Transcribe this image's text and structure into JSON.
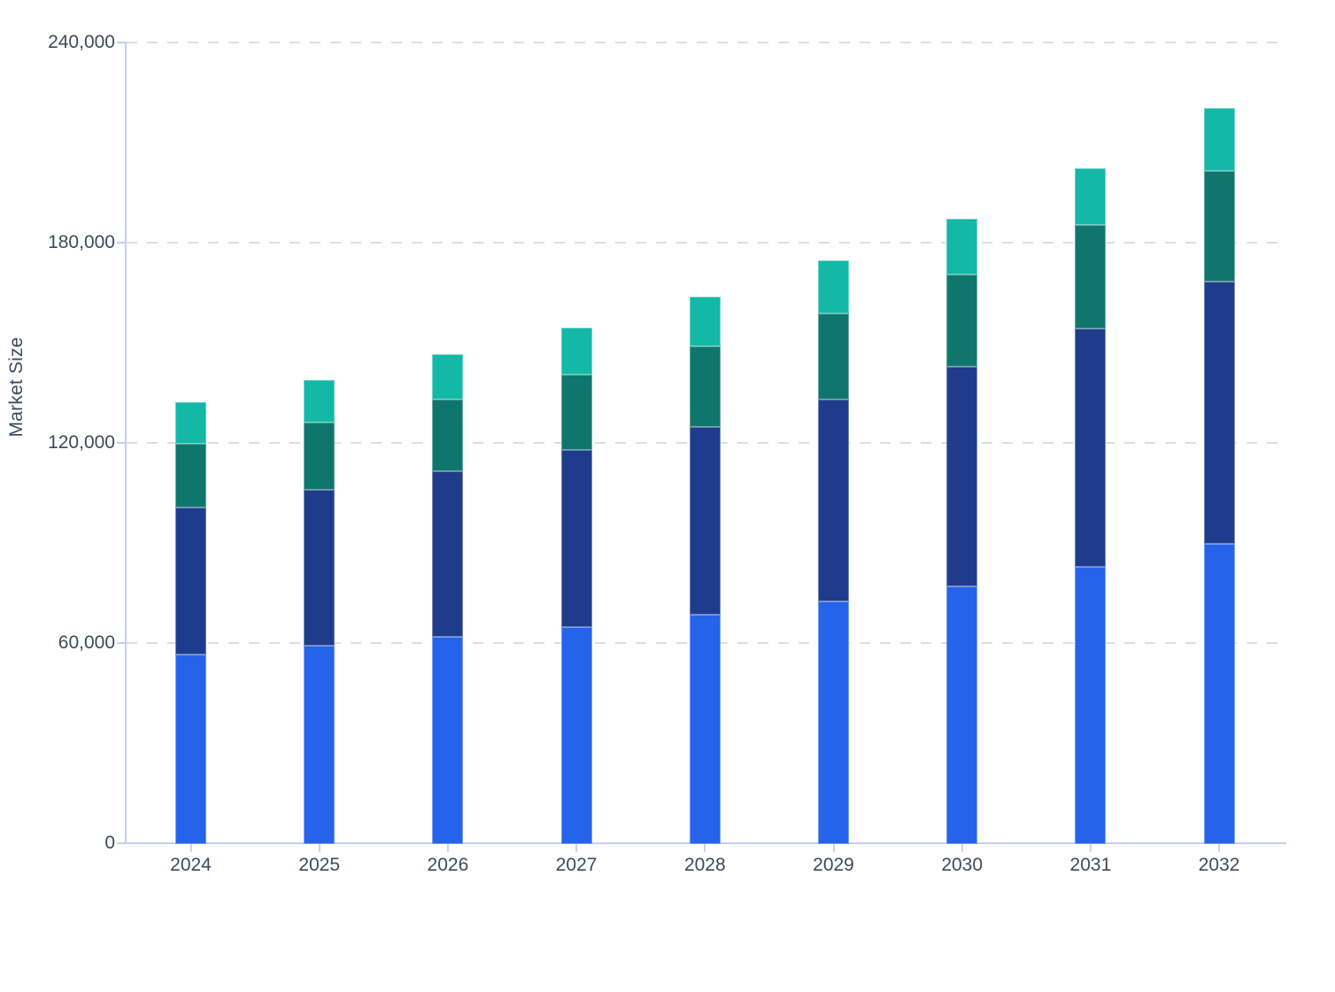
{
  "chart_data": {
    "type": "bar",
    "stacked": true,
    "title": "",
    "xlabel": "",
    "ylabel": "Market Size",
    "categories": [
      "2024",
      "2025",
      "2026",
      "2027",
      "2028",
      "2029",
      "2030",
      "2031",
      "2032"
    ],
    "series": [
      {
        "name": "Blue segment (bottom)",
        "color": "#2563EB",
        "values": [
          56800,
          59500,
          62100,
          65000,
          68800,
          72700,
          77300,
          83100,
          90000
        ]
      },
      {
        "name": "Navy segment",
        "color": "#1F3C8C",
        "values": [
          44100,
          46700,
          49700,
          53100,
          56300,
          60600,
          65800,
          71400,
          78600
        ]
      },
      {
        "name": "Teal segment",
        "color": "#0F766E",
        "values": [
          19100,
          20200,
          21500,
          22600,
          24100,
          25700,
          27600,
          31100,
          33200
        ]
      },
      {
        "name": "Mint segment (top)",
        "color": "#14B8A6",
        "values": [
          12500,
          12700,
          13500,
          14100,
          14900,
          16000,
          16700,
          17000,
          18800
        ]
      }
    ],
    "stack_totals": [
      132500,
      139100,
      146800,
      154800,
      164100,
      175000,
      187400,
      202600,
      220600
    ],
    "ylim": [
      0,
      240000
    ],
    "y_ticks": [
      {
        "value": 240000,
        "label": "240,000"
      },
      {
        "value": 180000,
        "label": "180,000"
      },
      {
        "value": 120000,
        "label": "120,000"
      },
      {
        "value": 60000,
        "label": "60,000"
      },
      {
        "value": 0,
        "label": "0"
      }
    ],
    "grid": "horizontal dashed",
    "legend": "none"
  },
  "style": {
    "axis_line_color": "#C5CFEE",
    "x_tick_color": "#CBD5F2",
    "gridline_color": "#DADFE5",
    "tick_label_color": "#3E4A5B",
    "background": "#FFFFFF"
  }
}
